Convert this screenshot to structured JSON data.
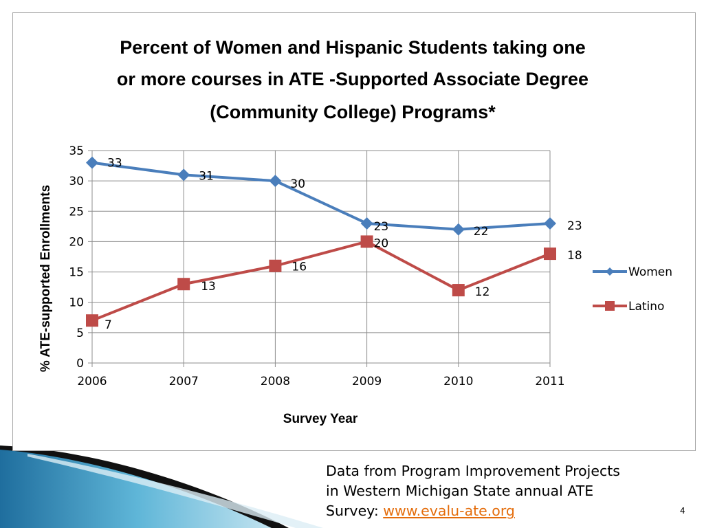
{
  "chart_data": {
    "type": "line",
    "title": [
      "Percent of  Women and Hispanic Students taking one",
      "or more courses in ATE -Supported  Associate Degree",
      "(Community College) Programs*"
    ],
    "xlabel": "Survey Year",
    "ylabel": "% ATE-supported Enrollments",
    "x": [
      "2006",
      "2007",
      "2008",
      "2009",
      "2010",
      "2011"
    ],
    "ylim": [
      0,
      35
    ],
    "yticks": [
      "0",
      "5",
      "10",
      "15",
      "20",
      "25",
      "30",
      "35"
    ],
    "grid": true,
    "legend_position": "right",
    "series": [
      {
        "name": "Women",
        "values": [
          33,
          31,
          30,
          23,
          22,
          23
        ],
        "labels": [
          "33",
          "31",
          "30",
          "23",
          "22",
          "23"
        ],
        "color": "#4a7ebb",
        "marker": "diamond"
      },
      {
        "name": "Latino",
        "values": [
          7,
          13,
          16,
          20,
          12,
          18
        ],
        "labels": [
          "7",
          "13",
          "16",
          "20",
          "12",
          "18"
        ],
        "color": "#be4b48",
        "marker": "square"
      }
    ]
  },
  "source": {
    "line1": "Data from Program Improvement Projects",
    "line2": "in Western Michigan State  annual ATE",
    "line3_prefix": "Survey: ",
    "link_text": "www.evalu-ate.org"
  },
  "page_number": "4"
}
